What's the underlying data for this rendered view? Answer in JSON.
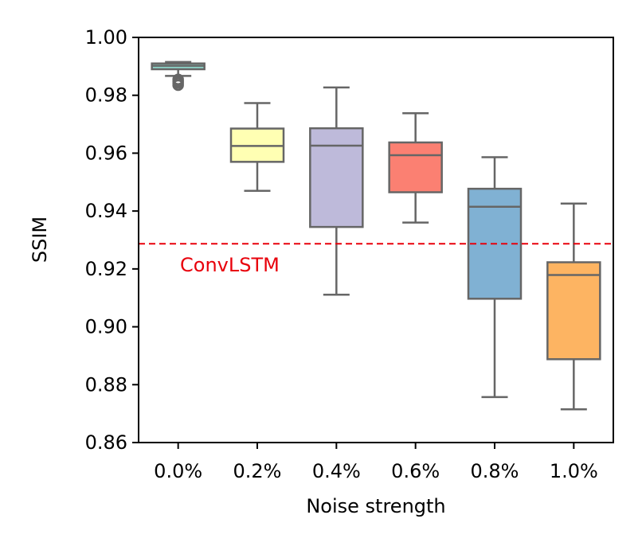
{
  "chart_data": {
    "type": "box",
    "xlabel": "Noise strength",
    "ylabel": "SSIM",
    "ylim": [
      0.86,
      1.0
    ],
    "yticks": [
      0.86,
      0.88,
      0.9,
      0.92,
      0.94,
      0.96,
      0.98,
      1.0
    ],
    "ytick_labels": [
      "0.86",
      "0.88",
      "0.90",
      "0.92",
      "0.94",
      "0.96",
      "0.98",
      "1.00"
    ],
    "categories": [
      "0.0%",
      "0.2%",
      "0.4%",
      "0.6%",
      "0.8%",
      "1.0%"
    ],
    "boxes": [
      {
        "category": "0.0%",
        "whisker_low": 0.9867,
        "q1": 0.989,
        "median": 0.9902,
        "q3": 0.991,
        "whisker_high": 0.9915,
        "outliers": [
          0.9855,
          0.9848,
          0.9842,
          0.9835
        ],
        "color": "#8dd3c7"
      },
      {
        "category": "0.2%",
        "whisker_low": 0.947,
        "q1": 0.957,
        "median": 0.9625,
        "q3": 0.9685,
        "whisker_high": 0.9773,
        "outliers": [],
        "color": "#ffffb3"
      },
      {
        "category": "0.4%",
        "whisker_low": 0.9111,
        "q1": 0.9345,
        "median": 0.9626,
        "q3": 0.9686,
        "whisker_high": 0.9827,
        "outliers": [],
        "color": "#bebada"
      },
      {
        "category": "0.6%",
        "whisker_low": 0.936,
        "q1": 0.9465,
        "median": 0.9593,
        "q3": 0.9637,
        "whisker_high": 0.9738,
        "outliers": [],
        "color": "#fb8072"
      },
      {
        "category": "0.8%",
        "whisker_low": 0.8757,
        "q1": 0.9097,
        "median": 0.9415,
        "q3": 0.9477,
        "whisker_high": 0.9586,
        "outliers": [],
        "color": "#80b1d3"
      },
      {
        "category": "1.0%",
        "whisker_low": 0.8715,
        "q1": 0.8888,
        "median": 0.9179,
        "q3": 0.9223,
        "whisker_high": 0.9426,
        "outliers": [],
        "color": "#fdb462"
      }
    ],
    "reference_line": {
      "label": "ConvLSTM",
      "value": 0.9287,
      "color": "#e8000b",
      "style": "dashed"
    },
    "grid": false,
    "legend": "none"
  }
}
